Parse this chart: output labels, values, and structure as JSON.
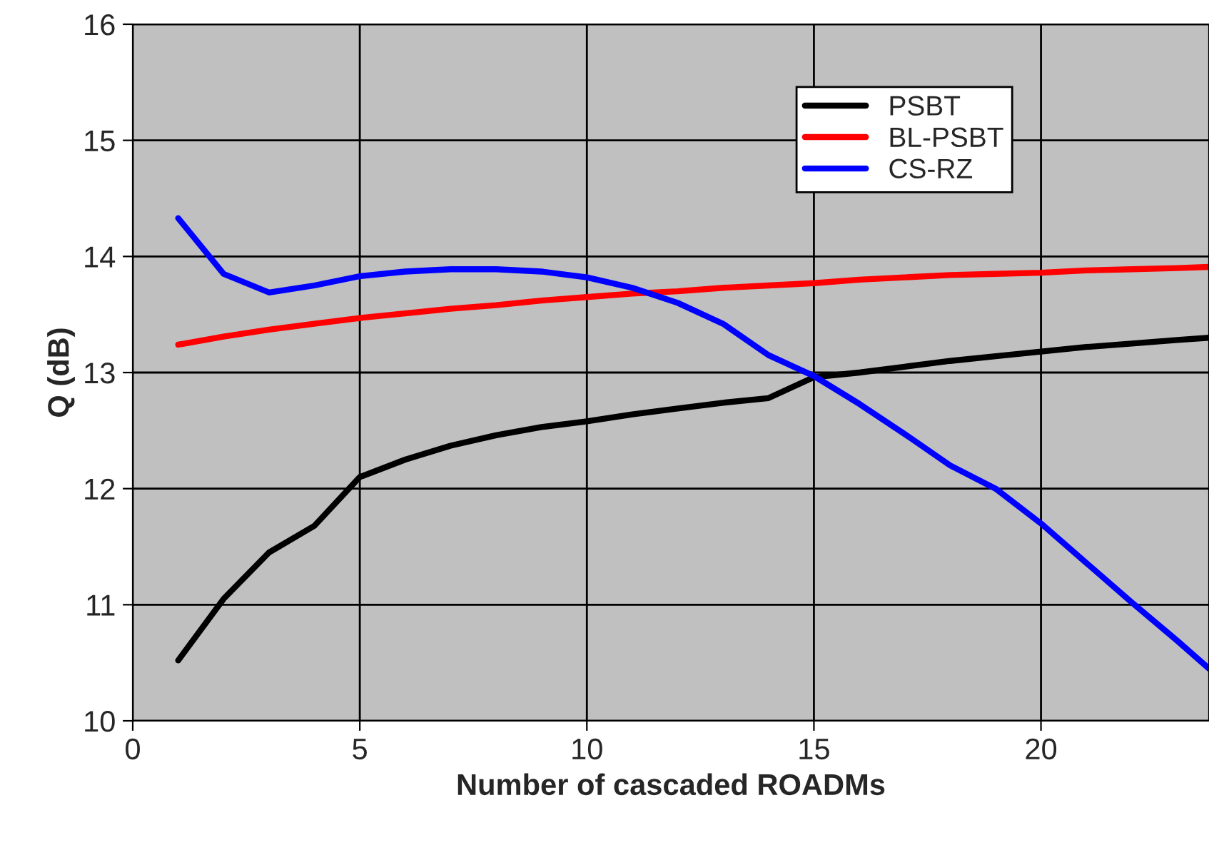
{
  "chart_data": {
    "type": "line",
    "xlabel": "Number of cascaded ROADMs",
    "ylabel": "Q (dB)",
    "xlim": [
      0,
      23.7
    ],
    "xticks": [
      0,
      5,
      10,
      15,
      20
    ],
    "ylim": [
      10,
      16
    ],
    "yticks": [
      10,
      11,
      12,
      13,
      14,
      15,
      16
    ],
    "grid": true,
    "legend": "top right",
    "marker": "none",
    "line_style": "solid",
    "x": [
      1,
      2,
      3,
      4,
      5,
      6,
      7,
      8,
      9,
      10,
      11,
      12,
      13,
      14,
      15,
      16,
      17,
      18,
      19,
      20,
      21,
      22,
      23,
      23.7
    ],
    "series": [
      {
        "name": "PSBT",
        "color": "#000000",
        "values": [
          10.52,
          11.05,
          11.45,
          11.68,
          12.1,
          12.25,
          12.37,
          12.46,
          12.53,
          12.58,
          12.64,
          12.69,
          12.74,
          12.78,
          12.96,
          13.0,
          13.05,
          13.1,
          13.14,
          13.18,
          13.22,
          13.25,
          13.28,
          13.3
        ]
      },
      {
        "name": "BL-PSBT",
        "color": "#ff0000",
        "values": [
          13.24,
          13.31,
          13.37,
          13.42,
          13.47,
          13.51,
          13.55,
          13.58,
          13.62,
          13.65,
          13.68,
          13.7,
          13.73,
          13.75,
          13.77,
          13.8,
          13.82,
          13.84,
          13.85,
          13.86,
          13.88,
          13.89,
          13.9,
          13.91
        ]
      },
      {
        "name": "CS-RZ",
        "color": "#0000ff",
        "values": [
          14.33,
          13.85,
          13.69,
          13.75,
          13.83,
          13.87,
          13.89,
          13.89,
          13.87,
          13.82,
          13.73,
          13.6,
          13.42,
          13.15,
          12.97,
          12.73,
          12.47,
          12.2,
          12.0,
          11.7,
          11.36,
          11.02,
          10.69,
          10.45
        ]
      }
    ]
  }
}
